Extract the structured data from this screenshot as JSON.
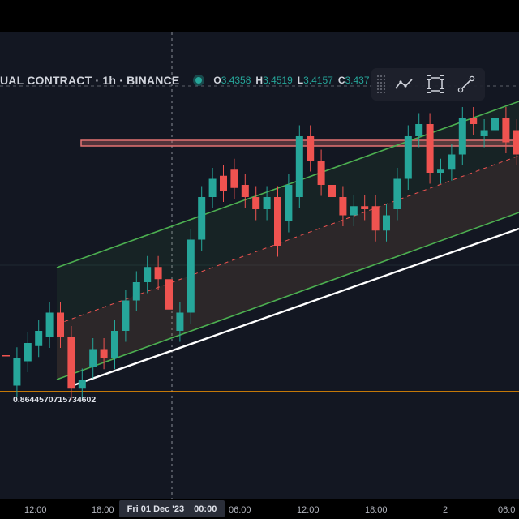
{
  "header": {
    "symbol_title": "UAL CONTRACT · 1h · BINANCE",
    "ohlc": [
      {
        "key": "O",
        "value": "3.4358"
      },
      {
        "key": "H",
        "value": "3.4519"
      },
      {
        "key": "L",
        "value": "3.4157"
      },
      {
        "key": "C",
        "value": "3.437"
      }
    ]
  },
  "toolbar": {
    "tools": [
      {
        "name": "trend-line-tool-icon"
      },
      {
        "name": "rectangle-tool-icon"
      },
      {
        "name": "ray-tool-icon"
      }
    ]
  },
  "price_label": "0.8644570715734602",
  "time_axis": {
    "ticks": [
      "12:00",
      "18:00",
      "06:00",
      "12:00",
      "18:00",
      "2",
      "06:0"
    ],
    "crosshair_date": "Fri 01 Dec '23",
    "crosshair_time": "00:00"
  },
  "colors": {
    "background": "#131722",
    "up": "#26a69a",
    "down": "#ef5350",
    "channel": "#4caf50",
    "support": "#ffffff",
    "resistance": "#e57373",
    "baseline": "#ff9800"
  },
  "chart_data": {
    "type": "candlestick",
    "candles": [
      {
        "dir": "down",
        "o": 3.0,
        "c": 2.98
      },
      {
        "dir": "up",
        "o": 2.5,
        "c": 2.95
      },
      {
        "dir": "up",
        "o": 2.9,
        "c": 3.2
      },
      {
        "dir": "up",
        "o": 3.15,
        "c": 3.4
      },
      {
        "dir": "up",
        "o": 3.3,
        "c": 3.7
      },
      {
        "dir": "down",
        "o": 3.7,
        "c": 3.3
      },
      {
        "dir": "down",
        "o": 3.3,
        "c": 2.45
      },
      {
        "dir": "up",
        "o": 2.45,
        "c": 2.6
      },
      {
        "dir": "up",
        "o": 2.8,
        "c": 3.1
      },
      {
        "dir": "down",
        "o": 3.1,
        "c": 2.95
      },
      {
        "dir": "up",
        "o": 2.95,
        "c": 3.4
      },
      {
        "dir": "up",
        "o": 3.4,
        "c": 3.9
      },
      {
        "dir": "up",
        "o": 3.9,
        "c": 4.2
      },
      {
        "dir": "up",
        "o": 4.2,
        "c": 4.45
      },
      {
        "dir": "down",
        "o": 4.45,
        "c": 4.25
      },
      {
        "dir": "down",
        "o": 4.25,
        "c": 3.75
      },
      {
        "dir": "up",
        "o": 3.4,
        "c": 3.7
      },
      {
        "dir": "up",
        "o": 3.7,
        "c": 4.9
      },
      {
        "dir": "up",
        "o": 4.9,
        "c": 5.6
      },
      {
        "dir": "up",
        "o": 5.6,
        "c": 5.9
      },
      {
        "dir": "down",
        "o": 5.95,
        "c": 5.7
      },
      {
        "dir": "down",
        "o": 6.05,
        "c": 5.75
      },
      {
        "dir": "down",
        "o": 5.8,
        "c": 5.6
      },
      {
        "dir": "down",
        "o": 5.6,
        "c": 5.4
      },
      {
        "dir": "up",
        "o": 5.4,
        "c": 5.6
      },
      {
        "dir": "down",
        "o": 5.6,
        "c": 4.8
      },
      {
        "dir": "up",
        "o": 5.2,
        "c": 5.8
      },
      {
        "dir": "up",
        "o": 5.6,
        "c": 6.6
      },
      {
        "dir": "down",
        "o": 6.6,
        "c": 6.2
      },
      {
        "dir": "down",
        "o": 6.2,
        "c": 5.8
      },
      {
        "dir": "down",
        "o": 5.8,
        "c": 5.6
      },
      {
        "dir": "down",
        "o": 5.6,
        "c": 5.3
      },
      {
        "dir": "up",
        "o": 5.3,
        "c": 5.45
      },
      {
        "dir": "down",
        "o": 5.45,
        "c": 5.4
      },
      {
        "dir": "down",
        "o": 5.45,
        "c": 5.05
      },
      {
        "dir": "up",
        "o": 5.05,
        "c": 5.3
      },
      {
        "dir": "up",
        "o": 5.4,
        "c": 5.9
      },
      {
        "dir": "up",
        "o": 5.9,
        "c": 6.6
      },
      {
        "dir": "up",
        "o": 6.6,
        "c": 6.8
      },
      {
        "dir": "down",
        "o": 6.8,
        "c": 6.0
      },
      {
        "dir": "up",
        "o": 6.0,
        "c": 6.05
      },
      {
        "dir": "up",
        "o": 6.05,
        "c": 6.3
      },
      {
        "dir": "up",
        "o": 6.3,
        "c": 6.9
      },
      {
        "dir": "down",
        "o": 6.9,
        "c": 6.8
      },
      {
        "dir": "up",
        "o": 6.6,
        "c": 6.7
      },
      {
        "dir": "up",
        "o": 6.7,
        "c": 6.9
      },
      {
        "dir": "down",
        "o": 6.9,
        "c": 6.5
      },
      {
        "dir": "down",
        "o": 6.7,
        "c": 6.3
      }
    ]
  }
}
